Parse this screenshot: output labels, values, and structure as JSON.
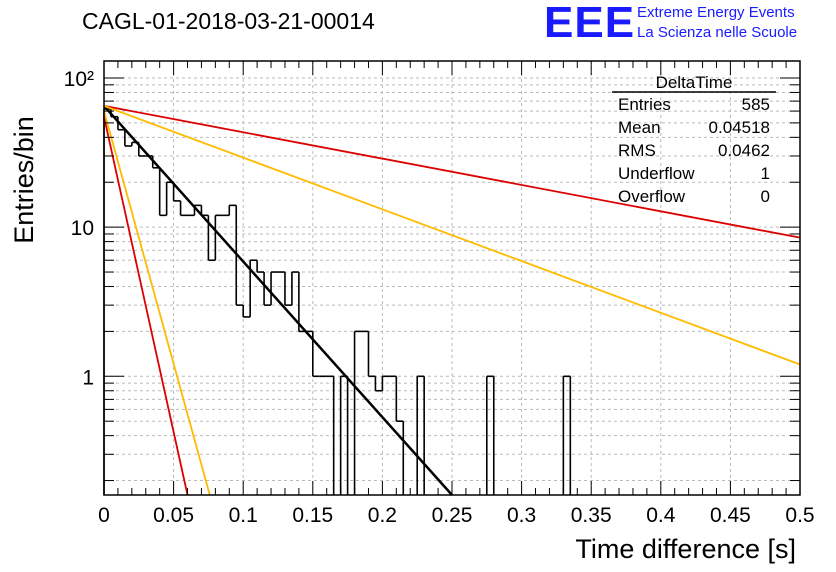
{
  "header": {
    "run_title": "CAGL-01-2018-03-21-00014",
    "logo_text": "EEE",
    "org_line1": "Extreme Energy Events",
    "org_line2": "La Scienza nelle Scuole"
  },
  "stats_box": {
    "title": "DeltaTime",
    "rows": [
      {
        "label": "Entries",
        "value": "585"
      },
      {
        "label": "Mean",
        "value": "0.04518"
      },
      {
        "label": "RMS",
        "value": "0.0462"
      },
      {
        "label": "Underflow",
        "value": "1"
      },
      {
        "label": "Overflow",
        "value": "0"
      }
    ]
  },
  "chart_data": {
    "type": "histogram",
    "xlabel": "Time difference [s]",
    "ylabel": "Entries/bin",
    "xlim": [
      0,
      0.5
    ],
    "ylim": [
      0.16,
      130
    ],
    "yscale": "log",
    "grid": true,
    "x_ticks": [
      0,
      0.05,
      0.1,
      0.15,
      0.2,
      0.25,
      0.3,
      0.35,
      0.4,
      0.45,
      0.5
    ],
    "x_tick_labels": [
      "0",
      "0.05",
      "0.1",
      "0.15",
      "0.2",
      "0.25",
      "0.3",
      "0.35",
      "0.4",
      "0.45",
      "0.5"
    ],
    "y_ticks": [
      1,
      10,
      100
    ],
    "y_tick_labels": [
      "1",
      "10",
      "10²"
    ],
    "bin_width": 0.005,
    "bin_edges_start": 0,
    "counts": [
      62,
      55,
      45,
      35,
      37,
      30,
      30,
      25,
      12,
      20,
      15,
      12,
      12,
      14,
      12,
      6,
      12,
      12,
      14,
      3,
      2.5,
      6,
      5,
      3,
      5,
      5,
      3,
      5,
      2,
      2,
      1,
      1,
      1,
      0,
      1,
      0,
      2,
      2,
      1,
      0.8,
      1,
      1,
      0.5,
      0,
      0,
      1,
      0,
      0,
      0,
      0,
      0,
      0,
      0,
      0,
      0,
      1,
      0,
      0,
      0,
      0,
      0,
      0,
      0,
      0,
      0,
      0,
      1
    ],
    "curves": [
      {
        "color": "#000000",
        "width": 2.5,
        "points": [
          [
            0,
            65
          ],
          [
            0.25,
            0.16
          ]
        ]
      },
      {
        "color": "#dd0000",
        "width": 1.8,
        "points": [
          [
            0,
            65
          ],
          [
            0.5,
            8.5
          ]
        ]
      },
      {
        "color": "#ffbb00",
        "width": 1.8,
        "points": [
          [
            0,
            65
          ],
          [
            0.5,
            1.2
          ]
        ]
      },
      {
        "color": "#dd0000",
        "width": 1.8,
        "points": [
          [
            0,
            55
          ],
          [
            0.06,
            0.16
          ]
        ]
      },
      {
        "color": "#ffbb00",
        "width": 1.8,
        "points": [
          [
            0,
            60
          ],
          [
            0.076,
            0.16
          ]
        ]
      }
    ]
  }
}
